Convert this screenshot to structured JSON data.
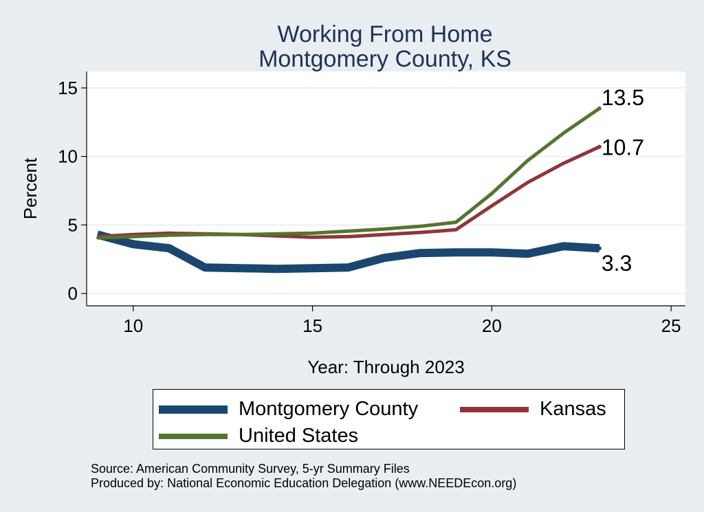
{
  "chart_data": {
    "type": "line",
    "title": "Working From Home",
    "subtitle": "Montgomery County, KS",
    "xlabel": "Year: Through 2023",
    "ylabel": "Percent",
    "xlim": [
      8.7,
      25.4
    ],
    "ylim": [
      -0.9,
      16.2
    ],
    "xticks": [
      10,
      15,
      20,
      25
    ],
    "yticks": [
      0,
      5,
      10,
      15
    ],
    "grid": true,
    "x": [
      9,
      10,
      11,
      12,
      13,
      14,
      15,
      16,
      17,
      18,
      19,
      20,
      21,
      22,
      23
    ],
    "series": [
      {
        "name": "Montgomery County",
        "color": "#1a476f",
        "values": [
          4.3,
          3.6,
          3.3,
          1.9,
          1.85,
          1.8,
          1.85,
          1.9,
          2.6,
          2.95,
          3.0,
          3.0,
          2.9,
          3.45,
          3.3
        ],
        "end_label": "3.3"
      },
      {
        "name": "Kansas",
        "color": "#90353b",
        "values": [
          4.15,
          4.3,
          4.4,
          4.35,
          4.3,
          4.2,
          4.1,
          4.15,
          4.3,
          4.45,
          4.65,
          6.4,
          8.1,
          9.5,
          10.7
        ],
        "end_label": "10.7"
      },
      {
        "name": "United States",
        "color": "#55752f",
        "values": [
          4.05,
          4.15,
          4.25,
          4.3,
          4.3,
          4.35,
          4.4,
          4.55,
          4.7,
          4.9,
          5.2,
          7.3,
          9.7,
          11.7,
          13.5
        ],
        "end_label": "13.5"
      }
    ],
    "legend": {
      "placement": "bottom"
    }
  },
  "footer": {
    "source": "Source: American Community Survey, 5-yr Summary Files",
    "produced": "Produced by: National Economic Education Delegation (www.NEEDEcon.org)"
  }
}
